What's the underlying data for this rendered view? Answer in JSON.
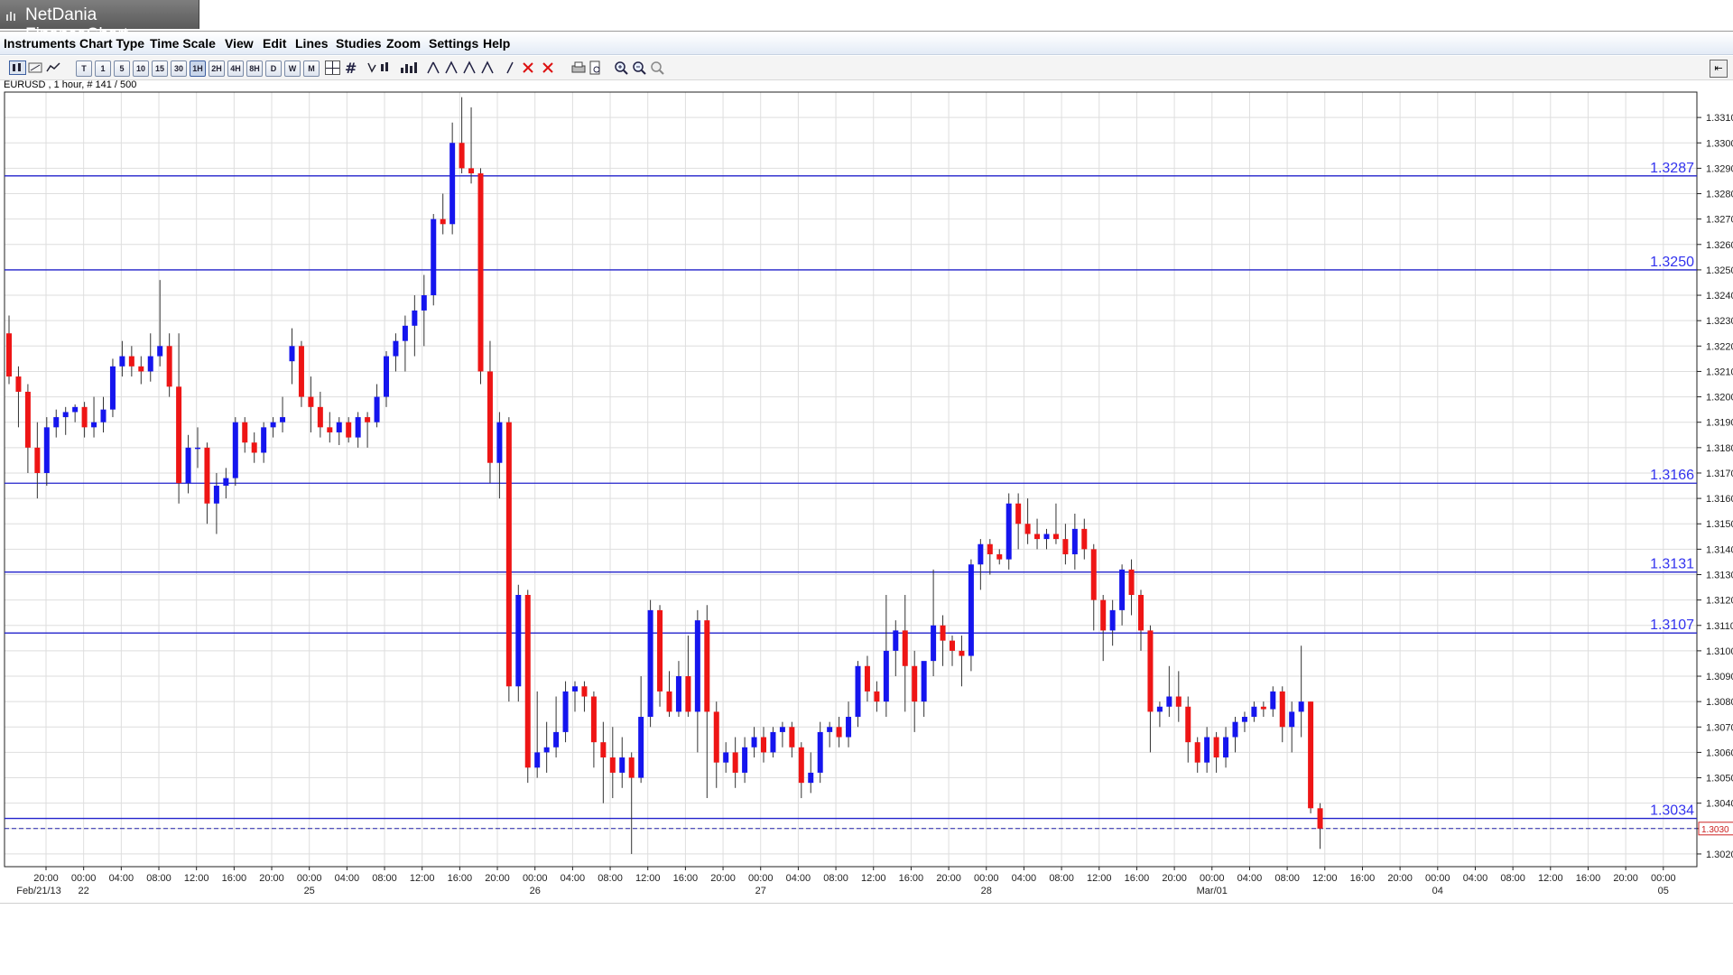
{
  "window": {
    "title": "NetDania FinanceChart"
  },
  "menu": [
    "Instruments",
    "Chart Type",
    "Time Scale",
    "View",
    "Edit",
    "Lines",
    "Studies",
    "Zoom",
    "Settings",
    "Help"
  ],
  "toolbar": {
    "period_buttons": [
      "T",
      "1",
      "5",
      "10",
      "15",
      "30",
      "1H",
      "2H",
      "4H",
      "8H",
      "D",
      "W",
      "M"
    ],
    "active_period": "1H"
  },
  "instrument": {
    "label": "EURUSD , 1 hour, # 141 / 500"
  },
  "colors": {
    "bull": "#1515ee",
    "bear": "#ee1515",
    "hline": "#2222cc",
    "grid": "#dedede"
  },
  "chart_data": {
    "type": "candlestick",
    "symbol": "EURUSD",
    "timeframe": "1 hour",
    "ylim": [
      1.3015,
      1.332
    ],
    "yticks": [
      "1.3310",
      "1.3300",
      "1.3290",
      "1.3280",
      "1.3270",
      "1.3260",
      "1.3250",
      "1.3240",
      "1.3230",
      "1.3220",
      "1.3210",
      "1.3200",
      "1.3190",
      "1.3180",
      "1.3170",
      "1.3160",
      "1.3150",
      "1.3140",
      "1.3130",
      "1.3120",
      "1.3110",
      "1.3100",
      "1.3090",
      "1.3080",
      "1.3070",
      "1.3060",
      "1.3050",
      "1.3040",
      "1.3030",
      "1.3020"
    ],
    "current_price": "1.3030",
    "horizontal_lines": [
      {
        "value": 1.3287,
        "label": "1.3287"
      },
      {
        "value": 1.325,
        "label": "1.3250"
      },
      {
        "value": 1.3166,
        "label": "1.3166"
      },
      {
        "value": 1.3131,
        "label": "1.3131"
      },
      {
        "value": 1.3107,
        "label": "1.3107"
      },
      {
        "value": 1.3034,
        "label": "1.3034"
      }
    ],
    "xticks": [
      {
        "label": "20:00",
        "date": "Feb/21/13"
      },
      {
        "label": "00:00",
        "date": "22"
      },
      {
        "label": "04:00",
        "date": ""
      },
      {
        "label": "08:00",
        "date": ""
      },
      {
        "label": "12:00",
        "date": ""
      },
      {
        "label": "16:00",
        "date": ""
      },
      {
        "label": "20:00",
        "date": ""
      },
      {
        "label": "00:00",
        "date": "25"
      },
      {
        "label": "04:00",
        "date": ""
      },
      {
        "label": "08:00",
        "date": ""
      },
      {
        "label": "12:00",
        "date": ""
      },
      {
        "label": "16:00",
        "date": ""
      },
      {
        "label": "20:00",
        "date": ""
      },
      {
        "label": "00:00",
        "date": "26"
      },
      {
        "label": "04:00",
        "date": ""
      },
      {
        "label": "08:00",
        "date": ""
      },
      {
        "label": "12:00",
        "date": ""
      },
      {
        "label": "16:00",
        "date": ""
      },
      {
        "label": "20:00",
        "date": ""
      },
      {
        "label": "00:00",
        "date": "27"
      },
      {
        "label": "04:00",
        "date": ""
      },
      {
        "label": "08:00",
        "date": ""
      },
      {
        "label": "12:00",
        "date": ""
      },
      {
        "label": "16:00",
        "date": ""
      },
      {
        "label": "20:00",
        "date": ""
      },
      {
        "label": "00:00",
        "date": "28"
      },
      {
        "label": "04:00",
        "date": ""
      },
      {
        "label": "08:00",
        "date": ""
      },
      {
        "label": "12:00",
        "date": ""
      },
      {
        "label": "16:00",
        "date": ""
      },
      {
        "label": "20:00",
        "date": ""
      },
      {
        "label": "00:00",
        "date": "Mar/01"
      },
      {
        "label": "04:00",
        "date": ""
      },
      {
        "label": "08:00",
        "date": ""
      },
      {
        "label": "12:00",
        "date": ""
      },
      {
        "label": "16:00",
        "date": ""
      },
      {
        "label": "20:00",
        "date": ""
      },
      {
        "label": "00:00",
        "date": "04"
      },
      {
        "label": "04:00",
        "date": ""
      },
      {
        "label": "08:00",
        "date": ""
      },
      {
        "label": "12:00",
        "date": ""
      },
      {
        "label": "16:00",
        "date": ""
      },
      {
        "label": "20:00",
        "date": ""
      },
      {
        "label": "00:00",
        "date": "05"
      }
    ],
    "candles": [
      [
        1.3225,
        1.3232,
        1.3205,
        1.3208
      ],
      [
        1.3208,
        1.3212,
        1.3188,
        1.3202
      ],
      [
        1.3202,
        1.3205,
        1.317,
        1.318
      ],
      [
        1.318,
        1.319,
        1.316,
        1.317
      ],
      [
        1.317,
        1.3192,
        1.3165,
        1.3188
      ],
      [
        1.3188,
        1.3195,
        1.3184,
        1.3192
      ],
      [
        1.3192,
        1.3196,
        1.3185,
        1.3194
      ],
      [
        1.3194,
        1.3197,
        1.319,
        1.3196
      ],
      [
        1.3196,
        1.3198,
        1.3184,
        1.3188
      ],
      [
        1.3188,
        1.32,
        1.3184,
        1.319
      ],
      [
        1.319,
        1.32,
        1.3186,
        1.3195
      ],
      [
        1.3195,
        1.3215,
        1.3192,
        1.3212
      ],
      [
        1.3212,
        1.3222,
        1.3208,
        1.3216
      ],
      [
        1.3216,
        1.322,
        1.3208,
        1.3212
      ],
      [
        1.3212,
        1.3216,
        1.3205,
        1.321
      ],
      [
        1.321,
        1.3225,
        1.3206,
        1.3216
      ],
      [
        1.3216,
        1.3246,
        1.3212,
        1.322
      ],
      [
        1.322,
        1.3225,
        1.32,
        1.3204
      ],
      [
        1.3204,
        1.3225,
        1.3158,
        1.3166
      ],
      [
        1.3166,
        1.3185,
        1.3162,
        1.318
      ],
      [
        1.318,
        1.3188,
        1.3172,
        1.318
      ],
      [
        1.318,
        1.3182,
        1.315,
        1.3158
      ],
      [
        1.3158,
        1.317,
        1.3146,
        1.3165
      ],
      [
        1.3165,
        1.3172,
        1.316,
        1.3168
      ],
      [
        1.3168,
        1.3192,
        1.3165,
        1.319
      ],
      [
        1.319,
        1.3192,
        1.3178,
        1.3182
      ],
      [
        1.3182,
        1.3186,
        1.3174,
        1.3178
      ],
      [
        1.3178,
        1.319,
        1.3174,
        1.3188
      ],
      [
        1.3188,
        1.3192,
        1.3184,
        1.319
      ],
      [
        1.319,
        1.32,
        1.3186,
        1.3192
      ],
      [
        1.3214,
        1.3227,
        1.3205,
        1.322
      ],
      [
        1.322,
        1.3222,
        1.3196,
        1.32
      ],
      [
        1.32,
        1.3208,
        1.3186,
        1.3196
      ],
      [
        1.3196,
        1.3202,
        1.3184,
        1.3188
      ],
      [
        1.3188,
        1.3194,
        1.3182,
        1.3186
      ],
      [
        1.3186,
        1.3192,
        1.3181,
        1.319
      ],
      [
        1.319,
        1.3192,
        1.3182,
        1.3184
      ],
      [
        1.3184,
        1.3194,
        1.318,
        1.3192
      ],
      [
        1.3192,
        1.3194,
        1.318,
        1.319
      ],
      [
        1.319,
        1.3205,
        1.3188,
        1.32
      ],
      [
        1.32,
        1.3218,
        1.3196,
        1.3216
      ],
      [
        1.3216,
        1.3225,
        1.321,
        1.3222
      ],
      [
        1.3222,
        1.3232,
        1.321,
        1.3228
      ],
      [
        1.3228,
        1.324,
        1.3216,
        1.3234
      ],
      [
        1.3234,
        1.3248,
        1.322,
        1.324
      ],
      [
        1.324,
        1.3272,
        1.3236,
        1.327
      ],
      [
        1.327,
        1.328,
        1.3264,
        1.3268
      ],
      [
        1.3268,
        1.3308,
        1.3264,
        1.33
      ],
      [
        1.33,
        1.3318,
        1.3288,
        1.329
      ],
      [
        1.329,
        1.3314,
        1.3284,
        1.3288
      ],
      [
        1.3288,
        1.329,
        1.3205,
        1.321
      ],
      [
        1.321,
        1.3222,
        1.3166,
        1.3174
      ],
      [
        1.3174,
        1.3194,
        1.316,
        1.319
      ],
      [
        1.319,
        1.3192,
        1.308,
        1.3086
      ],
      [
        1.3086,
        1.3126,
        1.308,
        1.3122
      ],
      [
        1.3122,
        1.3124,
        1.3048,
        1.3054
      ],
      [
        1.3054,
        1.3084,
        1.305,
        1.306
      ],
      [
        1.306,
        1.3072,
        1.3052,
        1.3062
      ],
      [
        1.3062,
        1.3082,
        1.3058,
        1.3068
      ],
      [
        1.3068,
        1.3088,
        1.3064,
        1.3084
      ],
      [
        1.3084,
        1.3088,
        1.3076,
        1.3086
      ],
      [
        1.3086,
        1.3088,
        1.3076,
        1.3082
      ],
      [
        1.3082,
        1.3084,
        1.3054,
        1.3064
      ],
      [
        1.3064,
        1.3072,
        1.304,
        1.3058
      ],
      [
        1.3058,
        1.307,
        1.3042,
        1.3052
      ],
      [
        1.3052,
        1.3066,
        1.3046,
        1.3058
      ],
      [
        1.3058,
        1.306,
        1.302,
        1.305
      ],
      [
        1.305,
        1.309,
        1.3048,
        1.3074
      ],
      [
        1.3074,
        1.312,
        1.307,
        1.3116
      ],
      [
        1.3116,
        1.3118,
        1.3078,
        1.3084
      ],
      [
        1.3084,
        1.3092,
        1.3074,
        1.3076
      ],
      [
        1.3076,
        1.3096,
        1.3074,
        1.309
      ],
      [
        1.309,
        1.3106,
        1.3074,
        1.3076
      ],
      [
        1.3076,
        1.3116,
        1.306,
        1.3112
      ],
      [
        1.3112,
        1.3118,
        1.3042,
        1.3076
      ],
      [
        1.3076,
        1.308,
        1.3046,
        1.3056
      ],
      [
        1.3056,
        1.3064,
        1.3052,
        1.306
      ],
      [
        1.306,
        1.3066,
        1.3046,
        1.3052
      ],
      [
        1.3052,
        1.3066,
        1.3048,
        1.3062
      ],
      [
        1.3062,
        1.307,
        1.3058,
        1.3066
      ],
      [
        1.3066,
        1.307,
        1.3056,
        1.306
      ],
      [
        1.306,
        1.307,
        1.3058,
        1.3068
      ],
      [
        1.3068,
        1.3072,
        1.3062,
        1.307
      ],
      [
        1.307,
        1.3072,
        1.3058,
        1.3062
      ],
      [
        1.3062,
        1.3064,
        1.3042,
        1.3048
      ],
      [
        1.3048,
        1.306,
        1.3044,
        1.3052
      ],
      [
        1.3052,
        1.3072,
        1.3048,
        1.3068
      ],
      [
        1.3068,
        1.3072,
        1.3062,
        1.307
      ],
      [
        1.307,
        1.3074,
        1.3062,
        1.3066
      ],
      [
        1.3066,
        1.308,
        1.3062,
        1.3074
      ],
      [
        1.3074,
        1.3096,
        1.307,
        1.3094
      ],
      [
        1.3094,
        1.3098,
        1.308,
        1.3084
      ],
      [
        1.3084,
        1.3088,
        1.3076,
        1.308
      ],
      [
        1.308,
        1.3122,
        1.3074,
        1.31
      ],
      [
        1.31,
        1.3112,
        1.309,
        1.3108
      ],
      [
        1.3108,
        1.3122,
        1.3076,
        1.3094
      ],
      [
        1.3094,
        1.31,
        1.3068,
        1.308
      ],
      [
        1.308,
        1.3094,
        1.3074,
        1.3096
      ],
      [
        1.3096,
        1.3132,
        1.309,
        1.311
      ],
      [
        1.311,
        1.3114,
        1.3094,
        1.3104
      ],
      [
        1.3104,
        1.3106,
        1.3094,
        1.31
      ],
      [
        1.31,
        1.3106,
        1.3086,
        1.3098
      ],
      [
        1.3098,
        1.3136,
        1.3092,
        1.3134
      ],
      [
        1.3134,
        1.3144,
        1.3124,
        1.3142
      ],
      [
        1.3142,
        1.3144,
        1.313,
        1.3138
      ],
      [
        1.3138,
        1.314,
        1.3134,
        1.3136
      ],
      [
        1.3136,
        1.3162,
        1.3132,
        1.3158
      ],
      [
        1.3158,
        1.3162,
        1.314,
        1.315
      ],
      [
        1.315,
        1.316,
        1.3142,
        1.3146
      ],
      [
        1.3146,
        1.3152,
        1.314,
        1.3144
      ],
      [
        1.3144,
        1.3148,
        1.314,
        1.3146
      ],
      [
        1.3146,
        1.3158,
        1.3142,
        1.3144
      ],
      [
        1.3144,
        1.315,
        1.3134,
        1.3138
      ],
      [
        1.3138,
        1.3154,
        1.3132,
        1.3148
      ],
      [
        1.3148,
        1.3152,
        1.3136,
        1.314
      ],
      [
        1.314,
        1.3142,
        1.3108,
        1.312
      ],
      [
        1.312,
        1.3122,
        1.3096,
        1.3108
      ],
      [
        1.3108,
        1.312,
        1.3102,
        1.3116
      ],
      [
        1.3116,
        1.3134,
        1.311,
        1.3132
      ],
      [
        1.3132,
        1.3136,
        1.3114,
        1.3122
      ],
      [
        1.3122,
        1.3124,
        1.31,
        1.3108
      ],
      [
        1.3108,
        1.311,
        1.306,
        1.3076
      ],
      [
        1.3076,
        1.308,
        1.307,
        1.3078
      ],
      [
        1.3078,
        1.3094,
        1.3074,
        1.3082
      ],
      [
        1.3082,
        1.3092,
        1.3072,
        1.3078
      ],
      [
        1.3078,
        1.3082,
        1.3056,
        1.3064
      ],
      [
        1.3064,
        1.3066,
        1.3052,
        1.3056
      ],
      [
        1.3056,
        1.307,
        1.3052,
        1.3066
      ],
      [
        1.3066,
        1.3068,
        1.3052,
        1.3058
      ],
      [
        1.3058,
        1.307,
        1.3054,
        1.3066
      ],
      [
        1.3066,
        1.3074,
        1.306,
        1.3072
      ],
      [
        1.3072,
        1.3076,
        1.3068,
        1.3074
      ],
      [
        1.3074,
        1.308,
        1.3072,
        1.3078
      ],
      [
        1.3078,
        1.308,
        1.3074,
        1.3077
      ],
      [
        1.3077,
        1.3086,
        1.3074,
        1.3084
      ],
      [
        1.3084,
        1.3086,
        1.3064,
        1.307
      ],
      [
        1.307,
        1.308,
        1.306,
        1.3076
      ],
      [
        1.3076,
        1.3102,
        1.3066,
        1.308
      ],
      [
        1.308,
        1.308,
        1.3036,
        1.3038
      ],
      [
        1.3038,
        1.304,
        1.3022,
        1.303
      ]
    ]
  }
}
